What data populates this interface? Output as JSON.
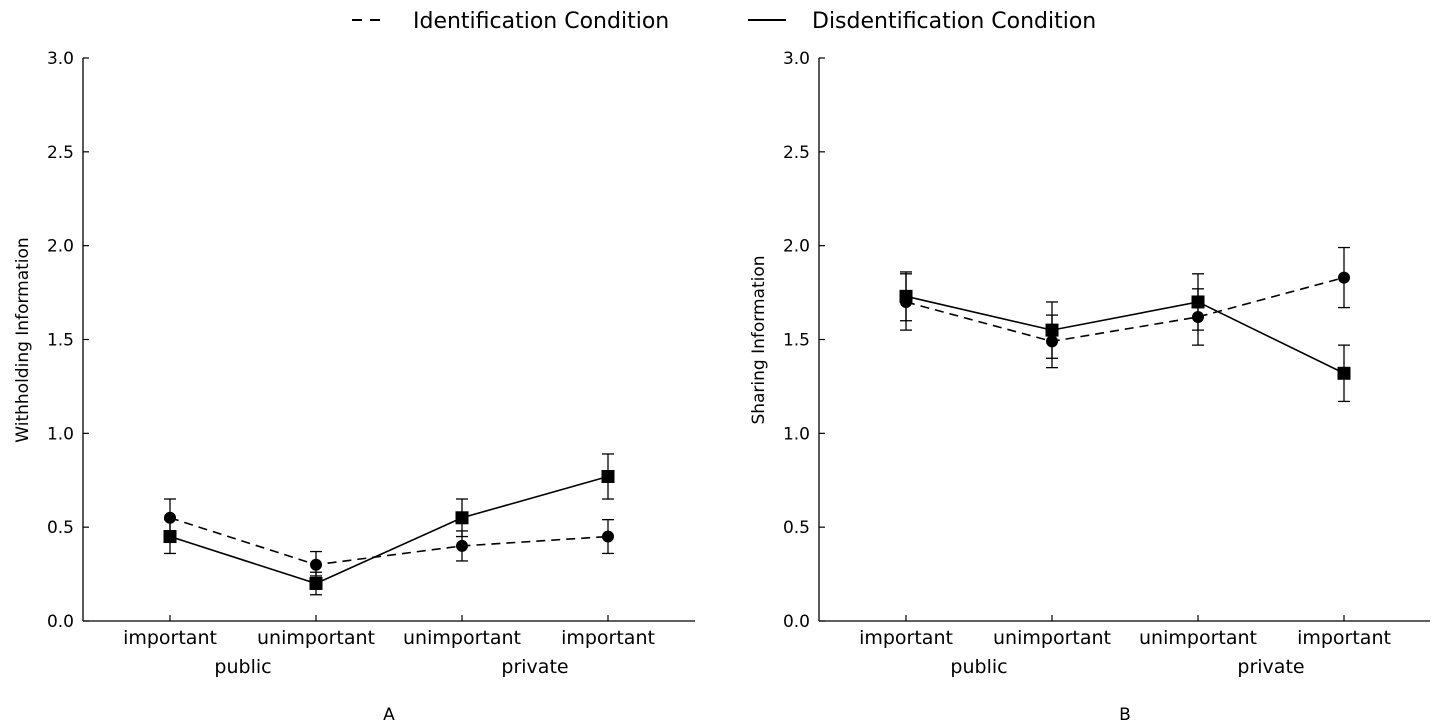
{
  "legend": {
    "identification": "Identification Condition",
    "disidentification": "Disdentification Condition"
  },
  "chart_data": [
    {
      "type": "line",
      "panel_label": "A",
      "ylabel": "Withholding Information",
      "xlabel": "",
      "ylim": [
        0.0,
        3.0
      ],
      "yticks": [
        "0.0",
        "0.5",
        "1.0",
        "1.5",
        "2.0",
        "2.5",
        "3.0"
      ],
      "categories": [
        "important",
        "unimportant",
        "unimportant",
        "important"
      ],
      "groups": [
        {
          "label": "public",
          "span": [
            0,
            1
          ]
        },
        {
          "label": "private",
          "span": [
            2,
            3
          ]
        }
      ],
      "series": [
        {
          "name": "Identification Condition",
          "style": "dashed",
          "marker": "circle",
          "values": [
            0.55,
            0.3,
            0.4,
            0.45
          ],
          "err": [
            [
              0.45,
              0.65
            ],
            [
              0.24,
              0.37
            ],
            [
              0.32,
              0.48
            ],
            [
              0.36,
              0.54
            ]
          ]
        },
        {
          "name": "Disdentification Condition",
          "style": "solid",
          "marker": "square",
          "values": [
            0.45,
            0.2,
            0.55,
            0.77
          ],
          "err": [
            [
              0.36,
              0.54
            ],
            [
              0.14,
              0.26
            ],
            [
              0.45,
              0.65
            ],
            [
              0.65,
              0.89
            ]
          ]
        }
      ]
    },
    {
      "type": "line",
      "panel_label": "B",
      "ylabel": "Sharing Information",
      "xlabel": "",
      "ylim": [
        0.0,
        3.0
      ],
      "yticks": [
        "0.0",
        "0.5",
        "1.0",
        "1.5",
        "2.0",
        "2.5",
        "3.0"
      ],
      "categories": [
        "important",
        "unimportant",
        "unimportant",
        "important"
      ],
      "groups": [
        {
          "label": "public",
          "span": [
            0,
            1
          ]
        },
        {
          "label": "private",
          "span": [
            2,
            3
          ]
        }
      ],
      "series": [
        {
          "name": "Identification Condition",
          "style": "dashed",
          "marker": "circle",
          "values": [
            1.7,
            1.49,
            1.62,
            1.83
          ],
          "err": [
            [
              1.55,
              1.85
            ],
            [
              1.35,
              1.63
            ],
            [
              1.47,
              1.77
            ],
            [
              1.67,
              1.99
            ]
          ]
        },
        {
          "name": "Disdentification Condition",
          "style": "solid",
          "marker": "square",
          "values": [
            1.73,
            1.55,
            1.7,
            1.32
          ],
          "err": [
            [
              1.6,
              1.86
            ],
            [
              1.4,
              1.7
            ],
            [
              1.55,
              1.85
            ],
            [
              1.17,
              1.47
            ]
          ]
        }
      ]
    }
  ]
}
